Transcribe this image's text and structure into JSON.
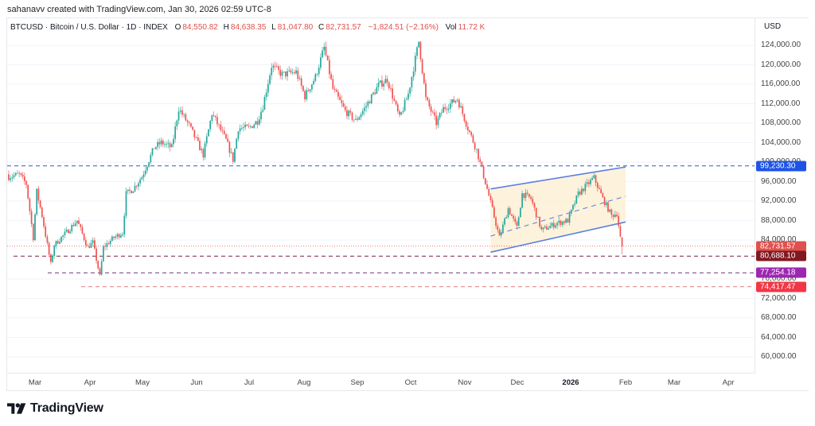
{
  "attribution": "sahanavv created with TradingView.com, Jan 30, 2026 02:59 UTC-8",
  "legend": {
    "symbol": "BTCUSD · Bitcoin / U.S. Dollar · 1D · INDEX",
    "open_label": "O",
    "open": "84,550.82",
    "high_label": "H",
    "high": "84,638.35",
    "low_label": "L",
    "low": "81,047.80",
    "close_label": "C",
    "close": "82,731.57",
    "change": "−1,824.51 (−2.16%)",
    "vol_label": "Vol",
    "vol": "11.72 K"
  },
  "price_axis": {
    "currency": "USD",
    "ticks": [
      "124,000.00",
      "120,000.00",
      "116,000.00",
      "112,000.00",
      "108,000.00",
      "104,000.00",
      "100,000.00",
      "96,000.00",
      "92,000.00",
      "88,000.00",
      "84,000.00",
      "76,000.00",
      "72,000.00",
      "68,000.00",
      "64,000.00",
      "60,000.00"
    ],
    "tick_values": [
      124000,
      120000,
      116000,
      112000,
      108000,
      104000,
      100000,
      96000,
      92000,
      88000,
      84000,
      76000,
      72000,
      68000,
      64000,
      60000
    ]
  },
  "price_tags": [
    {
      "label": "99,230.30",
      "value": 99230.3,
      "color": "#1e53e5",
      "line": "#4a6fc9"
    },
    {
      "label": "82,731.57",
      "value": 82731.57,
      "color": "#e0514d",
      "line": "#e0514d"
    },
    {
      "label": "80,688.10",
      "value": 80688.1,
      "color": "#801922",
      "line": "#8b3a50"
    },
    {
      "label": "77,254.18",
      "value": 77254.18,
      "color": "#9c27b0",
      "line": "#7b4a8c"
    },
    {
      "label": "74,417.47",
      "value": 74417.47,
      "color": "#f23645",
      "line": "#e28a8f"
    }
  ],
  "time_axis": {
    "labels": [
      {
        "text": "Mar",
        "x": 44
      },
      {
        "text": "Apr",
        "x": 113
      },
      {
        "text": "May",
        "x": 179
      },
      {
        "text": "Jun",
        "x": 247
      },
      {
        "text": "Jul",
        "x": 313
      },
      {
        "text": "Aug",
        "x": 382
      },
      {
        "text": "Sep",
        "x": 449
      },
      {
        "text": "Oct",
        "x": 516
      },
      {
        "text": "Nov",
        "x": 584
      },
      {
        "text": "Dec",
        "x": 650
      },
      {
        "text": "2026",
        "x": 717,
        "bold": true
      },
      {
        "text": "Feb",
        "x": 786
      },
      {
        "text": "Mar",
        "x": 847
      },
      {
        "text": "Apr",
        "x": 915
      }
    ]
  },
  "logo": {
    "text": "TradingView"
  },
  "colors": {
    "up": "#26a69a",
    "down": "#ef5350",
    "grid": "#f0f3fa",
    "channel_fill": "#fdf1d8",
    "channel_line": "#5b7fde"
  },
  "chart_data": {
    "type": "candlestick",
    "title": "BTCUSD · Bitcoin / U.S. Dollar · 1D · INDEX",
    "xlabel": "",
    "ylabel": "USD",
    "ylim": [
      57000,
      128000
    ],
    "x_range": [
      "2025-02-14",
      "2026-04-30"
    ],
    "close_path": [
      [
        "2025-02-14",
        97000
      ],
      [
        "2025-02-20",
        97500
      ],
      [
        "2025-02-24",
        95500
      ],
      [
        "2025-02-28",
        84500
      ],
      [
        "2025-03-02",
        94000
      ],
      [
        "2025-03-05",
        89000
      ],
      [
        "2025-03-10",
        79000
      ],
      [
        "2025-03-12",
        83000
      ],
      [
        "2025-03-20",
        86000
      ],
      [
        "2025-03-25",
        88000
      ],
      [
        "2025-03-31",
        82500
      ],
      [
        "2025-04-03",
        83500
      ],
      [
        "2025-04-07",
        76500
      ],
      [
        "2025-04-09",
        82500
      ],
      [
        "2025-04-15",
        84500
      ],
      [
        "2025-04-20",
        85500
      ],
      [
        "2025-04-22",
        93500
      ],
      [
        "2025-04-26",
        94500
      ],
      [
        "2025-05-01",
        97000
      ],
      [
        "2025-05-08",
        103000
      ],
      [
        "2025-05-12",
        104000
      ],
      [
        "2025-05-18",
        103000
      ],
      [
        "2025-05-22",
        111000
      ],
      [
        "2025-05-28",
        107500
      ],
      [
        "2025-06-05",
        101500
      ],
      [
        "2025-06-10",
        110000
      ],
      [
        "2025-06-18",
        104500
      ],
      [
        "2025-06-22",
        100500
      ],
      [
        "2025-06-25",
        107000
      ],
      [
        "2025-07-01",
        107000
      ],
      [
        "2025-07-06",
        108500
      ],
      [
        "2025-07-09",
        111500
      ],
      [
        "2025-07-14",
        119800
      ],
      [
        "2025-07-20",
        118000
      ],
      [
        "2025-07-28",
        118500
      ],
      [
        "2025-08-02",
        113500
      ],
      [
        "2025-08-08",
        117500
      ],
      [
        "2025-08-13",
        123500
      ],
      [
        "2025-08-18",
        115000
      ],
      [
        "2025-08-25",
        110500
      ],
      [
        "2025-08-31",
        108500
      ],
      [
        "2025-09-05",
        111000
      ],
      [
        "2025-09-13",
        115800
      ],
      [
        "2025-09-18",
        117000
      ],
      [
        "2025-09-25",
        109000
      ],
      [
        "2025-09-30",
        114000
      ],
      [
        "2025-10-06",
        124800
      ],
      [
        "2025-10-10",
        113000
      ],
      [
        "2025-10-16",
        108000
      ],
      [
        "2025-10-20",
        111000
      ],
      [
        "2025-10-28",
        113000
      ],
      [
        "2025-11-03",
        107000
      ],
      [
        "2025-11-08",
        102500
      ],
      [
        "2025-11-14",
        94500
      ],
      [
        "2025-11-21",
        84500
      ],
      [
        "2025-11-26",
        90500
      ],
      [
        "2025-12-01",
        86500
      ],
      [
        "2025-12-04",
        93500
      ],
      [
        "2025-12-09",
        92500
      ],
      [
        "2025-12-15",
        86000
      ],
      [
        "2025-12-24",
        87500
      ],
      [
        "2025-12-30",
        88000
      ],
      [
        "2026-01-05",
        93500
      ],
      [
        "2026-01-14",
        96800
      ],
      [
        "2026-01-19",
        92500
      ],
      [
        "2026-01-24",
        89000
      ],
      [
        "2026-01-27",
        89500
      ],
      [
        "2026-01-29",
        84500
      ],
      [
        "2026-01-30",
        82731.57
      ]
    ],
    "last_bar": {
      "date": "2026-01-30",
      "open": 84550.82,
      "high": 84638.35,
      "low": 81047.8,
      "close": 82731.57,
      "volume": "11.72K"
    },
    "horizontal_lines": [
      99230.3,
      80688.1,
      77254.18,
      74417.47
    ],
    "channel": {
      "upper": [
        [
          "2025-11-16",
          94500
        ],
        [
          "2026-02-01",
          99000
        ]
      ],
      "middle": [
        [
          "2025-11-16",
          84800
        ],
        [
          "2026-02-01",
          93000
        ]
      ],
      "lower": [
        [
          "2025-11-16",
          81500
        ],
        [
          "2026-02-01",
          87700
        ]
      ]
    },
    "grid": true
  }
}
